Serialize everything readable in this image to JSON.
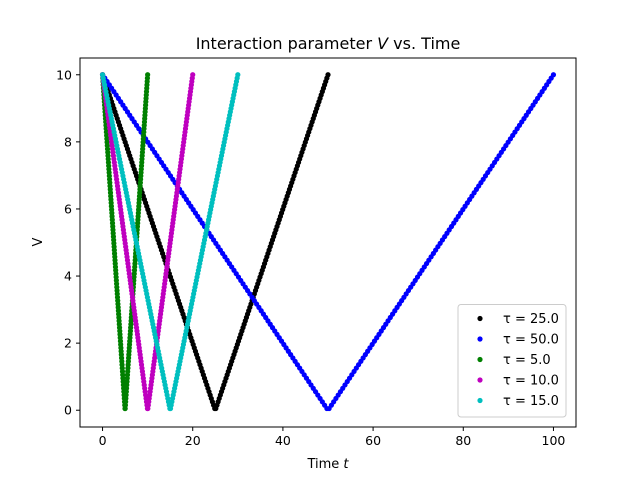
{
  "chart_data": {
    "type": "scatter",
    "title": "Interaction parameter V vs. Time",
    "title_parts": {
      "prefix": "Interaction parameter ",
      "var": "V",
      "suffix": " vs. Time"
    },
    "xlabel": "Time t",
    "xlabel_parts": {
      "prefix": "Time ",
      "var": "t"
    },
    "ylabel": "V",
    "xlim": [
      -5,
      105
    ],
    "ylim": [
      -0.5,
      10.5
    ],
    "xticks": [
      0,
      20,
      40,
      60,
      80,
      100
    ],
    "yticks": [
      0,
      2,
      4,
      6,
      8,
      10
    ],
    "grid": false,
    "legend_position": "lower-right",
    "v_max": 10,
    "series": [
      {
        "name": "τ = 25.0",
        "tau": 25.0,
        "color": "#000000",
        "x_end": 50,
        "n_points": 200
      },
      {
        "name": "τ = 50.0",
        "tau": 50.0,
        "color": "#0000ff",
        "x_end": 100,
        "n_points": 200
      },
      {
        "name": "τ = 5.0",
        "tau": 5.0,
        "color": "#008000",
        "x_end": 10,
        "n_points": 200
      },
      {
        "name": "τ = 10.0",
        "tau": 10.0,
        "color": "#bf00bf",
        "x_end": 20,
        "n_points": 200
      },
      {
        "name": "τ = 15.0",
        "tau": 15.0,
        "color": "#00bfbf",
        "x_end": 30,
        "n_points": 200
      }
    ]
  }
}
